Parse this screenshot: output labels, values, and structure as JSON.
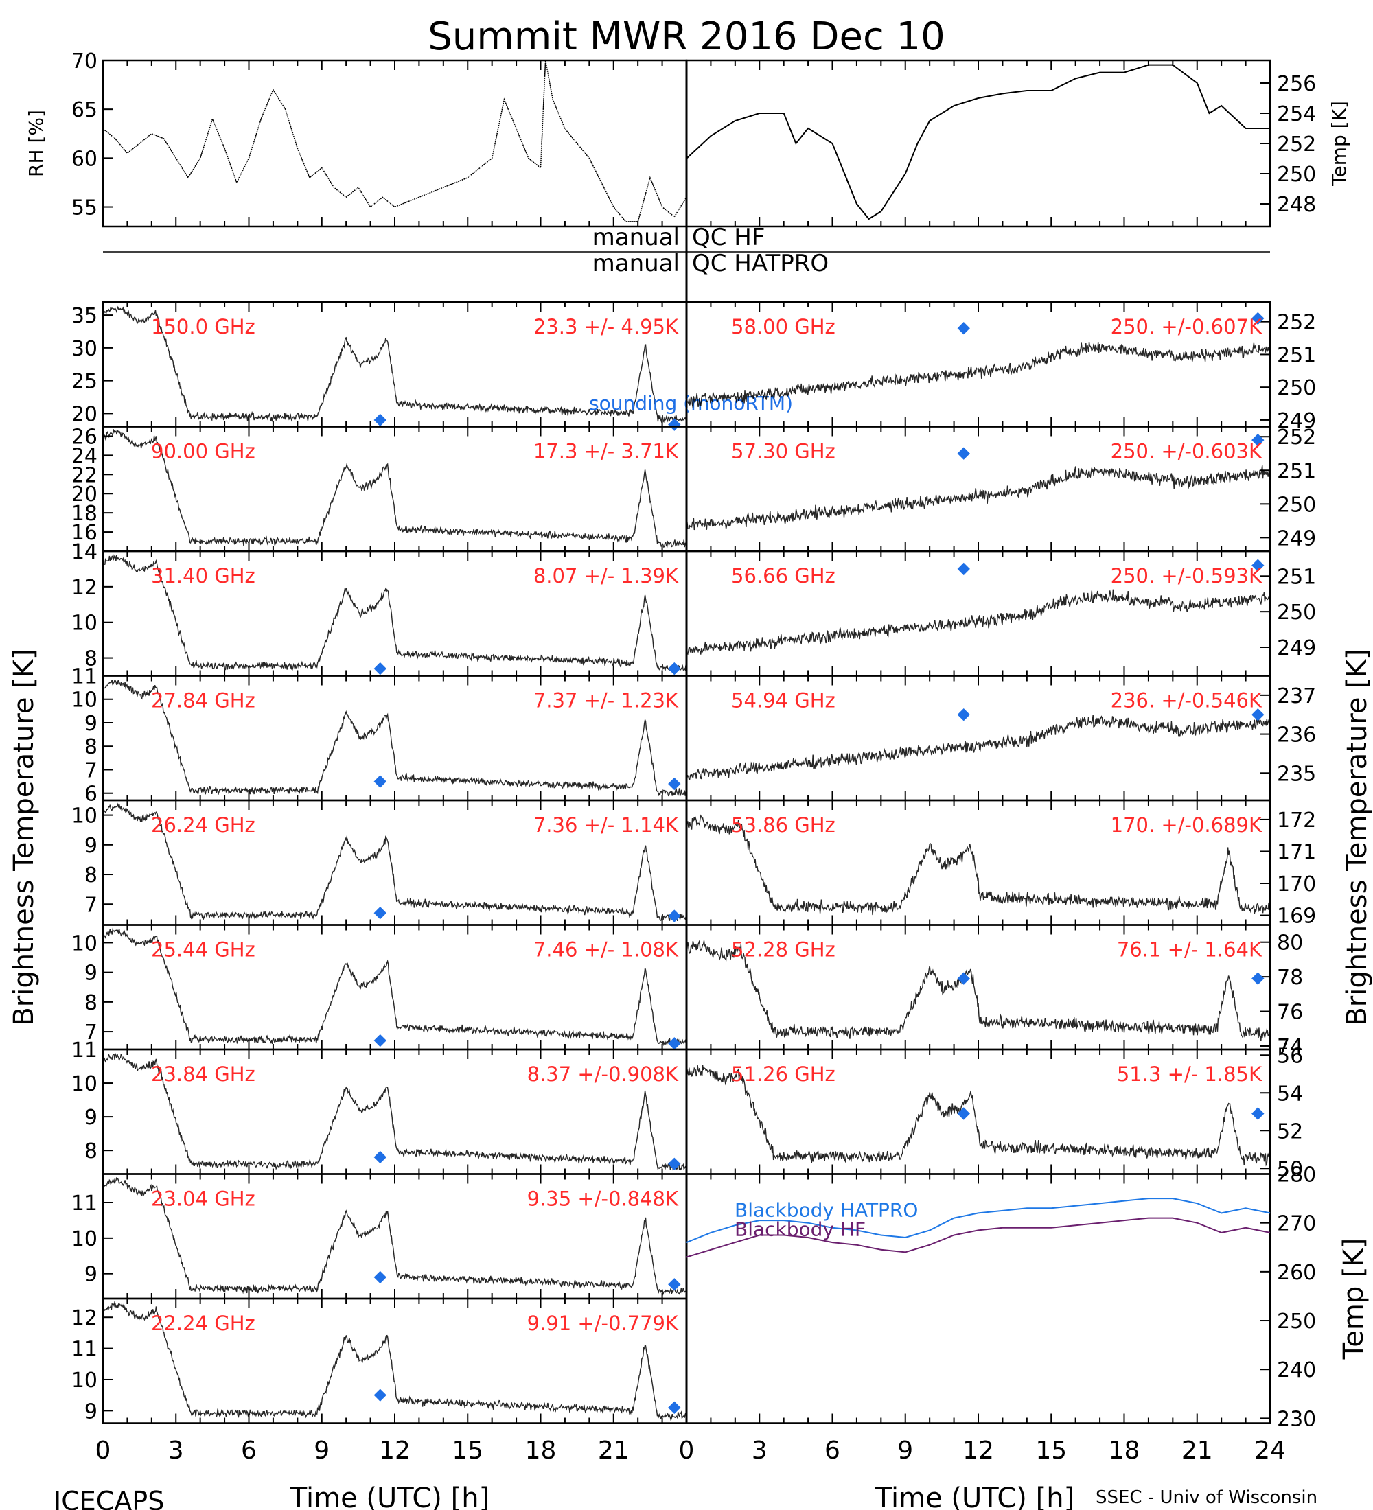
{
  "figure": {
    "title": "Summit MWR 2016 Dec 10",
    "footer_left": "ICECAPS",
    "footer_right": "SSEC - Univ of Wisconsin",
    "xlabel": "Time (UTC) [h]",
    "left_ylabel": "Brightness Temperature [K]",
    "right_ylabel": "Brightness Temperature [K]",
    "qc_labels": {
      "hf_left": "manual",
      "hf_right": "QC HF",
      "hatpro_left": "manual",
      "hatpro_right": "QC HATPRO"
    },
    "colors": {
      "annotation": "#ff2a2a",
      "sounding": "#1e6fe6",
      "blackbody_hatpro": "#1e78e6",
      "blackbody_hf": "#6a1f6e",
      "data": "#000000"
    }
  },
  "chart_data": [
    {
      "id": "rh",
      "type": "line",
      "ylabel": "RH [%]",
      "xlim": [
        0,
        12
      ],
      "ylim": [
        53,
        70
      ],
      "yticks": [
        55,
        60,
        65,
        70
      ],
      "x": [
        0,
        0.5,
        1,
        1.5,
        2,
        2.5,
        3,
        3.5,
        4,
        4.5,
        5,
        5.5,
        6,
        6.5,
        7,
        7.5,
        8,
        8.5,
        9,
        9.5,
        10,
        10.5,
        11,
        11.5,
        12
      ],
      "values": [
        63,
        62,
        60.5,
        61.5,
        62.5,
        62,
        60,
        58,
        60,
        64,
        61,
        57.5,
        60,
        64,
        67,
        65,
        61,
        58,
        59,
        57,
        56,
        57,
        55,
        56,
        55
      ]
    },
    {
      "id": "rh_cont",
      "type": "line",
      "ylabel": "",
      "xlim": [
        12,
        24
      ],
      "ylim": [
        53,
        70
      ],
      "x": [
        12,
        13,
        14,
        15,
        16,
        16.5,
        17,
        17.5,
        18,
        18.2,
        18.5,
        19,
        20,
        21,
        21.5,
        22,
        22.5,
        23,
        23.5,
        24
      ],
      "values": [
        55,
        56,
        57,
        58,
        60,
        66,
        63,
        60,
        59,
        70,
        66,
        63,
        60,
        55,
        53.5,
        53.5,
        58,
        55,
        54,
        56
      ]
    },
    {
      "id": "temp",
      "type": "line",
      "ylabel": "Temp [K]",
      "xlim": [
        0,
        24
      ],
      "ylim": [
        246.5,
        257.5
      ],
      "yticks": [
        248,
        250,
        252,
        254,
        256
      ],
      "x": [
        0,
        1,
        2,
        3,
        4,
        4.5,
        5,
        6,
        7,
        7.5,
        8,
        9,
        9.5,
        10,
        11,
        12,
        13,
        14,
        15,
        16,
        17,
        18,
        19,
        20,
        21,
        21.5,
        22,
        23,
        24
      ],
      "values": [
        251,
        252.5,
        253.5,
        254,
        254,
        252,
        253,
        252,
        248,
        247,
        247.5,
        250,
        252,
        253.5,
        254.5,
        255,
        255.3,
        255.5,
        255.5,
        256.3,
        256.7,
        256.7,
        257.2,
        257.2,
        256,
        254,
        254.5,
        253,
        253
      ]
    },
    {
      "id": "ch150",
      "type": "scatter",
      "panel": "left",
      "freq": "150.0 GHz",
      "stats": "23.3 +/- 4.95K",
      "ylim": [
        18,
        37
      ],
      "yticks": [
        20,
        25,
        30,
        35
      ],
      "ytick_labels": [
        "20",
        "25",
        "30",
        "35"
      ],
      "sounding": [
        {
          "x": 11.4,
          "y": 19
        },
        {
          "x": 23.5,
          "y": 18.3
        }
      ],
      "sounding_label": "sounding (monoRTM)"
    },
    {
      "id": "ch90",
      "type": "scatter",
      "panel": "left",
      "freq": "90.00 GHz",
      "stats": "17.3 +/- 3.71K",
      "ylim": [
        14,
        27
      ],
      "yticks": [
        14,
        16,
        18,
        20,
        22,
        24,
        26
      ],
      "ytick_labels": [
        "14",
        "16",
        "18",
        "20",
        "22",
        "24",
        "26"
      ],
      "sounding": []
    },
    {
      "id": "ch31",
      "type": "scatter",
      "panel": "left",
      "freq": "31.40 GHz",
      "stats": "8.07 +/- 1.39K",
      "ylim": [
        7,
        14
      ],
      "yticks": [
        8,
        10,
        12,
        14
      ],
      "ytick_labels": [
        "8",
        "10",
        "12",
        "14"
      ],
      "sounding": [
        {
          "x": 11.4,
          "y": 7.4
        },
        {
          "x": 23.5,
          "y": 7.4
        }
      ]
    },
    {
      "id": "ch27",
      "type": "scatter",
      "panel": "left",
      "freq": "27.84 GHz",
      "stats": "7.37 +/- 1.23K",
      "ylim": [
        5.7,
        11
      ],
      "yticks": [
        6,
        7,
        8,
        9,
        10,
        11
      ],
      "ytick_labels": [
        "6",
        "7",
        "8",
        "9",
        "10",
        "11"
      ],
      "sounding": [
        {
          "x": 11.4,
          "y": 6.5
        },
        {
          "x": 23.5,
          "y": 6.4
        }
      ]
    },
    {
      "id": "ch26",
      "type": "scatter",
      "panel": "left",
      "freq": "26.24 GHz",
      "stats": "7.36 +/- 1.14K",
      "ylim": [
        6.3,
        10.5
      ],
      "yticks": [
        7,
        8,
        9,
        10
      ],
      "ytick_labels": [
        "7",
        "8",
        "9",
        "10"
      ],
      "sounding": [
        {
          "x": 11.4,
          "y": 6.7
        },
        {
          "x": 23.5,
          "y": 6.6
        }
      ]
    },
    {
      "id": "ch25",
      "type": "scatter",
      "panel": "left",
      "freq": "25.44 GHz",
      "stats": "7.46 +/- 1.08K",
      "ylim": [
        6.4,
        10.6
      ],
      "yticks": [
        7,
        8,
        9,
        10
      ],
      "ytick_labels": [
        "7",
        "8",
        "9",
        "10"
      ],
      "sounding": [
        {
          "x": 11.4,
          "y": 6.7
        },
        {
          "x": 23.5,
          "y": 6.6
        }
      ]
    },
    {
      "id": "ch23_84",
      "type": "scatter",
      "panel": "left",
      "freq": "23.84 GHz",
      "stats": "8.37 +/-0.908K",
      "ylim": [
        7.3,
        11
      ],
      "yticks": [
        8,
        9,
        10,
        11
      ],
      "ytick_labels": [
        "8",
        "9",
        "10",
        "11"
      ],
      "sounding": [
        {
          "x": 11.4,
          "y": 7.8
        },
        {
          "x": 23.5,
          "y": 7.6
        }
      ]
    },
    {
      "id": "ch23_04",
      "type": "scatter",
      "panel": "left",
      "freq": "23.04 GHz",
      "stats": "9.35 +/-0.848K",
      "ylim": [
        8.3,
        11.8
      ],
      "yticks": [
        9,
        10,
        11
      ],
      "ytick_labels": [
        "9",
        "10",
        "11"
      ],
      "sounding": [
        {
          "x": 11.4,
          "y": 8.9
        },
        {
          "x": 23.5,
          "y": 8.7
        }
      ]
    },
    {
      "id": "ch22",
      "type": "scatter",
      "panel": "left",
      "freq": "22.24 GHz",
      "stats": "9.91 +/-0.779K",
      "ylim": [
        8.6,
        12.6
      ],
      "yticks": [
        9,
        10,
        11,
        12
      ],
      "ytick_labels": [
        "9",
        "10",
        "11",
        "12"
      ],
      "sounding": [
        {
          "x": 11.4,
          "y": 9.5
        },
        {
          "x": 23.5,
          "y": 9.1
        }
      ]
    },
    {
      "id": "ch58",
      "type": "scatter",
      "panel": "right",
      "freq": "58.00 GHz",
      "stats": "250. +/-0.607K",
      "ylim": [
        248.8,
        252.6
      ],
      "yticks": [
        249,
        250,
        251,
        252
      ],
      "ytick_labels": [
        "249",
        "250",
        "251",
        "252"
      ],
      "sounding": [
        {
          "x": 11.4,
          "y": 251.8
        },
        {
          "x": 23.5,
          "y": 252.1
        }
      ]
    },
    {
      "id": "ch57_3",
      "type": "scatter",
      "panel": "right",
      "freq": "57.30 GHz",
      "stats": "250. +/-0.603K",
      "ylim": [
        248.6,
        252.3
      ],
      "yticks": [
        249,
        250,
        251,
        252
      ],
      "ytick_labels": [
        "249",
        "250",
        "251",
        "252"
      ],
      "sounding": [
        {
          "x": 11.4,
          "y": 251.5
        },
        {
          "x": 23.5,
          "y": 251.9
        }
      ]
    },
    {
      "id": "ch56",
      "type": "scatter",
      "panel": "right",
      "freq": "56.66 GHz",
      "stats": "250. +/-0.593K",
      "ylim": [
        248.2,
        251.7
      ],
      "yticks": [
        249,
        250,
        251
      ],
      "ytick_labels": [
        "249",
        "250",
        "251"
      ],
      "sounding": [
        {
          "x": 11.4,
          "y": 251.2
        },
        {
          "x": 23.5,
          "y": 251.3
        }
      ]
    },
    {
      "id": "ch54",
      "type": "scatter",
      "panel": "right",
      "freq": "54.94 GHz",
      "stats": "236. +/-0.546K",
      "ylim": [
        234.3,
        237.5
      ],
      "yticks": [
        235,
        236,
        237
      ],
      "ytick_labels": [
        "235",
        "236",
        "237"
      ],
      "sounding": [
        {
          "x": 11.4,
          "y": 236.5
        },
        {
          "x": 23.5,
          "y": 236.5
        }
      ]
    },
    {
      "id": "ch53",
      "type": "scatter",
      "panel": "right",
      "freq": "53.86 GHz",
      "stats": "170. +/-0.689K",
      "ylim": [
        168.7,
        172.6
      ],
      "yticks": [
        169,
        170,
        171,
        172
      ],
      "ytick_labels": [
        "169",
        "170",
        "171",
        "172"
      ],
      "sounding": []
    },
    {
      "id": "ch52",
      "type": "scatter",
      "panel": "right",
      "freq": "52.28 GHz",
      "stats": "76.1 +/- 1.64K",
      "ylim": [
        73.8,
        81
      ],
      "yticks": [
        74,
        76,
        78,
        80
      ],
      "ytick_labels": [
        "74",
        "76",
        "78",
        "80"
      ],
      "sounding": [
        {
          "x": 11.4,
          "y": 77.9
        },
        {
          "x": 23.5,
          "y": 77.9
        }
      ]
    },
    {
      "id": "ch51",
      "type": "scatter",
      "panel": "right",
      "freq": "51.26 GHz",
      "stats": "51.3 +/- 1.85K",
      "ylim": [
        49.7,
        56.3
      ],
      "yticks": [
        50,
        52,
        54,
        56
      ],
      "ytick_labels": [
        "50",
        "52",
        "54",
        "56"
      ],
      "sounding": [
        {
          "x": 11.4,
          "y": 52.9
        },
        {
          "x": 23.5,
          "y": 52.9
        }
      ]
    },
    {
      "id": "blackbody",
      "type": "line",
      "panel": "right",
      "ylabel": "Temp [K]",
      "ylim": [
        229,
        280
      ],
      "yticks": [
        230,
        240,
        250,
        260,
        270,
        280
      ],
      "ytick_labels": [
        "230",
        "240",
        "250",
        "260",
        "270",
        "280"
      ],
      "x": [
        0,
        1,
        2,
        3,
        4,
        5,
        6,
        7,
        8,
        9,
        10,
        11,
        12,
        13,
        14,
        15,
        16,
        17,
        18,
        19,
        20,
        21,
        22,
        23,
        24
      ],
      "series": [
        {
          "name": "Blackbody HATPRO",
          "values": [
            266,
            268,
            269.5,
            270.5,
            270.5,
            270,
            269,
            268.5,
            267.5,
            267,
            268.5,
            271,
            272,
            272.5,
            273,
            273,
            273.5,
            274,
            274.5,
            275,
            275,
            274,
            272,
            273,
            272
          ]
        },
        {
          "name": "Blackbody HF",
          "values": [
            263,
            264.5,
            266,
            267.5,
            267.5,
            267,
            266,
            265.5,
            264.5,
            264,
            265.5,
            267.5,
            268.5,
            269,
            269,
            269,
            269.5,
            270,
            270.5,
            271,
            271,
            270,
            268,
            269,
            268
          ]
        }
      ]
    }
  ],
  "xaxis": {
    "left_ticks": [
      "0",
      "3",
      "6",
      "9",
      "12",
      "15",
      "18",
      "21"
    ],
    "right_ticks": [
      "0",
      "3",
      "6",
      "9",
      "12",
      "15",
      "18",
      "21",
      "24"
    ],
    "range": [
      0,
      24
    ]
  }
}
